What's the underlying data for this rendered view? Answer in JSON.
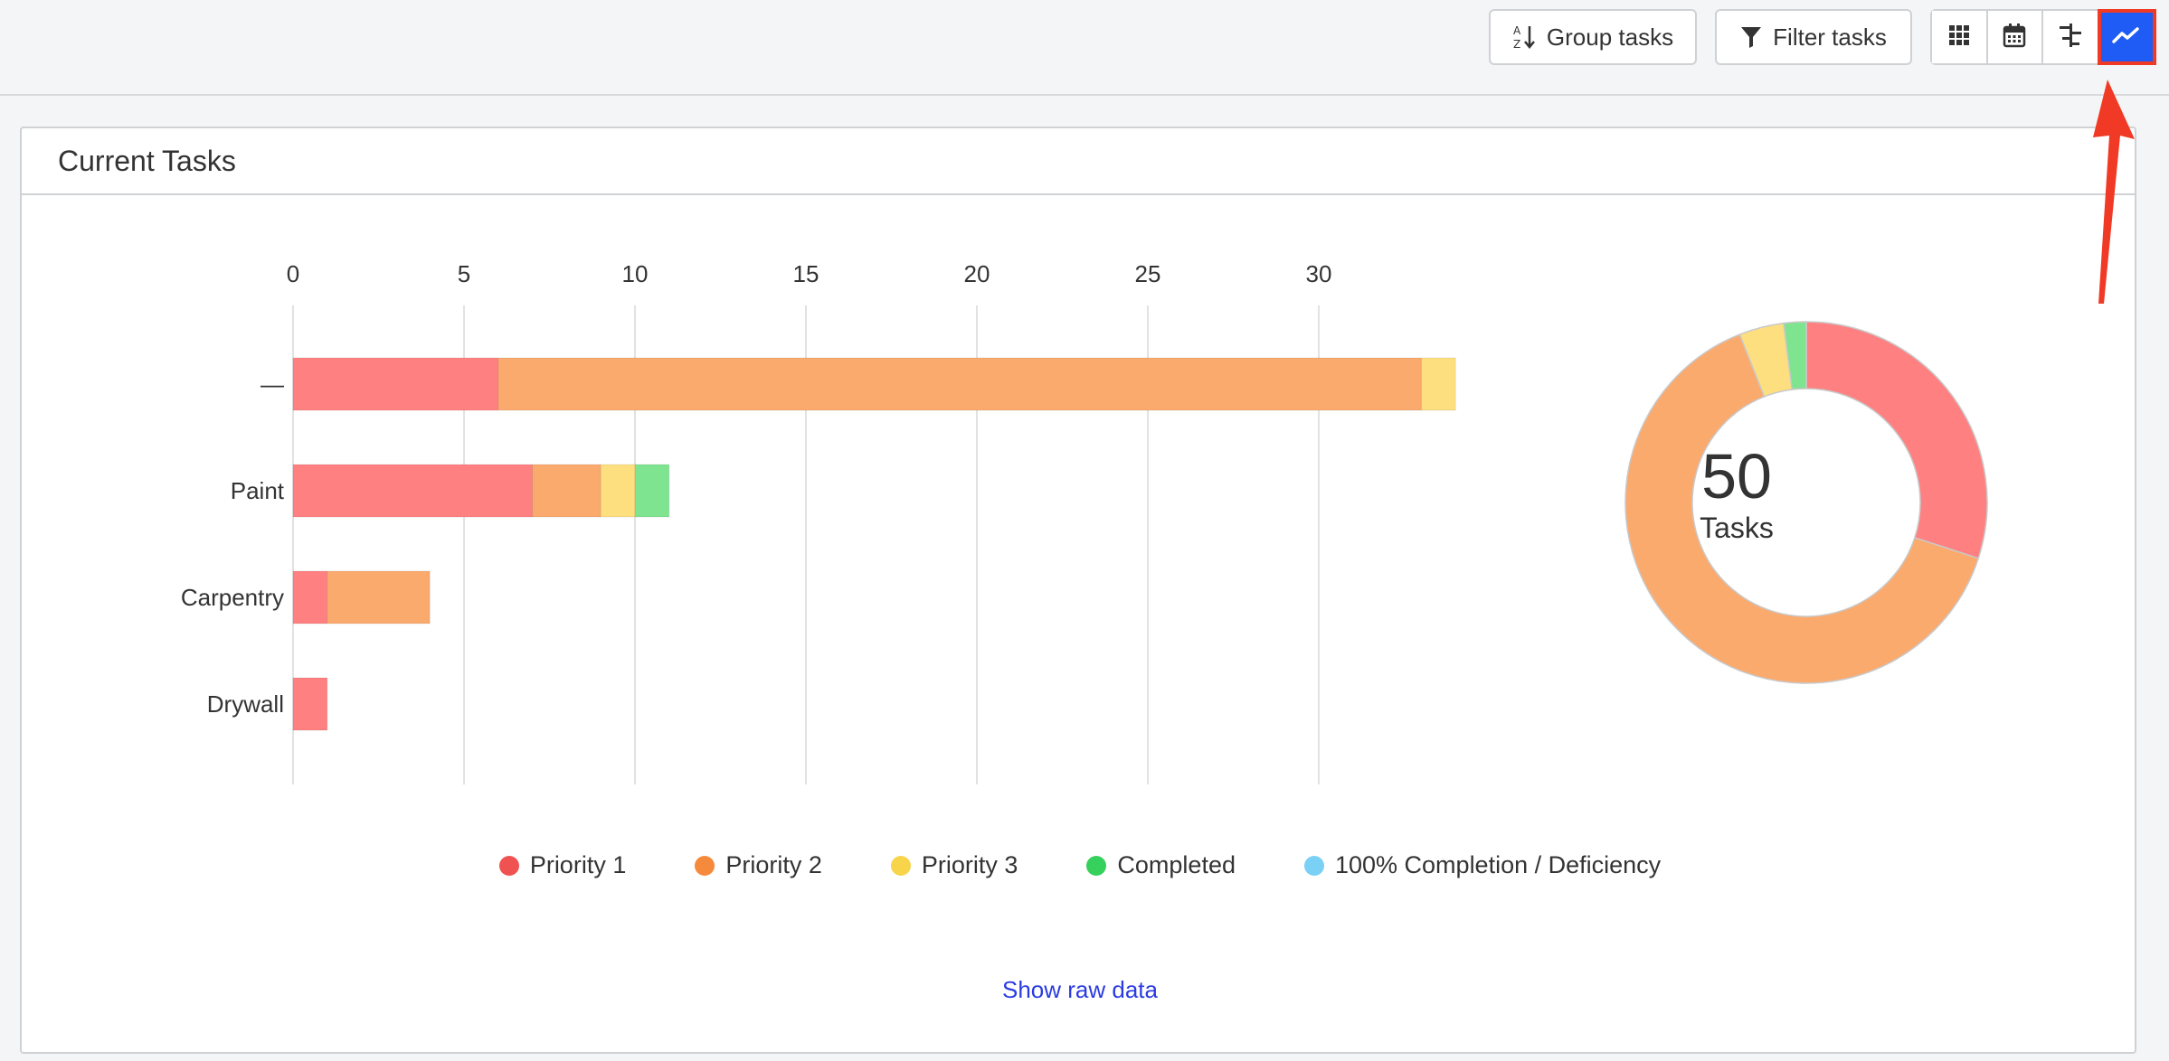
{
  "toolbar": {
    "group_label": "Group tasks",
    "filter_label": "Filter tasks"
  },
  "view_buttons": [
    {
      "name": "grid-view",
      "icon": "grid-icon"
    },
    {
      "name": "calendar-view",
      "icon": "calendar-icon"
    },
    {
      "name": "gantt-view",
      "icon": "gantt-icon"
    },
    {
      "name": "chart-view",
      "icon": "trend-line-icon",
      "active": true
    }
  ],
  "card": {
    "title": "Current Tasks",
    "show_raw_data": "Show raw data"
  },
  "colors": {
    "accent": "#1f5cf5",
    "annotation": "#f03a25",
    "priority1": "#ff8080",
    "priority2": "#fbaa6e",
    "priority3": "#fddf7f",
    "completed": "#7fe490",
    "deficiency": "#87d4f5"
  },
  "chart_data": [
    {
      "type": "bar",
      "orientation": "horizontal",
      "stacked": true,
      "categories": [
        "—",
        "Paint",
        "Carpentry",
        "Drywall"
      ],
      "x_ticks": [
        "0",
        "5",
        "10",
        "15",
        "20",
        "25",
        "30"
      ],
      "xlim": [
        0,
        34
      ],
      "grid": true,
      "series": [
        {
          "name": "Priority 1",
          "color": "#ff8080",
          "values": [
            6,
            7,
            1,
            1
          ]
        },
        {
          "name": "Priority 2",
          "color": "#fbaa6e",
          "values": [
            27,
            2,
            3,
            0
          ]
        },
        {
          "name": "Priority 3",
          "color": "#fddf7f",
          "values": [
            1,
            1,
            0,
            0
          ]
        },
        {
          "name": "Completed",
          "color": "#7fe490",
          "values": [
            0,
            1,
            0,
            0
          ]
        },
        {
          "name": "100% Completion / Deficiency",
          "color": "#87d4f5",
          "values": [
            0,
            0,
            0,
            0
          ]
        }
      ]
    },
    {
      "type": "pie",
      "donut": true,
      "center_value": "50",
      "center_label": "Tasks",
      "slices": [
        {
          "name": "Priority 1",
          "value": 15,
          "color": "#ff8080"
        },
        {
          "name": "Priority 2",
          "value": 32,
          "color": "#fbaa6e"
        },
        {
          "name": "Priority 3",
          "value": 2,
          "color": "#fddf7f"
        },
        {
          "name": "Completed",
          "value": 1,
          "color": "#7fe490"
        }
      ]
    }
  ],
  "legend": [
    {
      "label": "Priority 1",
      "color": "#f05252"
    },
    {
      "label": "Priority 2",
      "color": "#f68a3c"
    },
    {
      "label": "Priority 3",
      "color": "#f8d44a"
    },
    {
      "label": "Completed",
      "color": "#36d05c"
    },
    {
      "label": "100% Completion / Deficiency",
      "color": "#7ad0f5"
    }
  ]
}
